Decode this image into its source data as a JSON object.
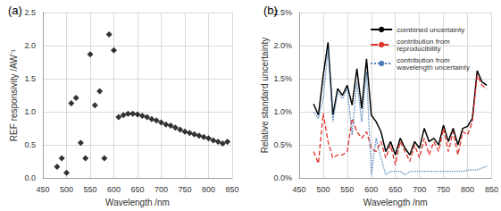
{
  "chart_data": [
    {
      "type": "scatter",
      "title": "(a)",
      "x_label": "Wavelength /nm",
      "y_label": "REF responsivity /AW⁻¹",
      "x": [
        480,
        490,
        500,
        510,
        520,
        530,
        540,
        550,
        560,
        570,
        580,
        590,
        600,
        610,
        620,
        630,
        640,
        650,
        660,
        670,
        680,
        690,
        700,
        710,
        720,
        730,
        740,
        750,
        760,
        770,
        780,
        790,
        800,
        810,
        820,
        830,
        840
      ],
      "values": [
        0.17,
        0.3,
        0.08,
        1.13,
        1.21,
        0.53,
        0.3,
        1.87,
        1.1,
        1.31,
        0.3,
        2.17,
        1.93,
        0.92,
        0.95,
        0.97,
        0.97,
        0.96,
        0.94,
        0.92,
        0.89,
        0.87,
        0.84,
        0.81,
        0.79,
        0.76,
        0.73,
        0.7,
        0.68,
        0.66,
        0.64,
        0.62,
        0.6,
        0.57,
        0.55,
        0.52,
        0.55
      ],
      "color": "#000000",
      "marker": "diamond",
      "xlim": [
        450,
        850
      ],
      "xticks": [
        450,
        500,
        550,
        600,
        650,
        700,
        750,
        800,
        850
      ],
      "ylim": [
        0,
        2.5
      ],
      "yticks": [
        {
          "value": 0,
          "label": "0.0"
        },
        0.5,
        {
          "value": 1,
          "label": "1.0"
        },
        1.5,
        {
          "value": 2,
          "label": "2.0"
        },
        2.5
      ],
      "grid": true
    },
    {
      "type": "line",
      "title": "(b)",
      "x_label": "Wavelength /nm",
      "y_label": "Relative standard uncertainty",
      "x": [
        480,
        490,
        500,
        510,
        520,
        530,
        540,
        550,
        560,
        570,
        580,
        590,
        600,
        610,
        620,
        630,
        640,
        650,
        660,
        670,
        680,
        690,
        700,
        710,
        720,
        730,
        740,
        750,
        760,
        770,
        780,
        790,
        800,
        810,
        820,
        830,
        840
      ],
      "series": [
        {
          "name": "combined uncertainty",
          "color": "#000000",
          "line_style": "solid",
          "values": [
            1.12,
            0.95,
            1.55,
            2.05,
            0.95,
            1.35,
            1.25,
            1.4,
            1.1,
            1.65,
            1.05,
            1.8,
            0.95,
            0.85,
            0.7,
            0.4,
            0.55,
            0.35,
            0.6,
            0.45,
            0.35,
            0.55,
            0.45,
            0.75,
            0.55,
            0.6,
            0.5,
            0.8,
            0.55,
            0.75,
            0.5,
            0.75,
            0.78,
            0.9,
            1.62,
            1.45,
            1.4
          ]
        },
        {
          "name": "contribution from\nreproducibility",
          "color": "#e0312a",
          "line_style": "dashed",
          "values": [
            0.4,
            0.22,
            0.98,
            0.55,
            0.3,
            0.35,
            0.35,
            0.4,
            0.9,
            0.7,
            0.6,
            0.7,
            0.45,
            0.4,
            0.55,
            0.3,
            0.5,
            0.2,
            0.55,
            0.4,
            0.25,
            0.5,
            0.3,
            0.6,
            0.35,
            0.55,
            0.4,
            0.75,
            0.4,
            0.7,
            0.35,
            0.7,
            0.65,
            0.85,
            1.55,
            1.4,
            1.35
          ]
        },
        {
          "name": "contribution from\nwavelength uncertainty",
          "color": "#4a7ebb",
          "line_style": "dotted",
          "values": [
            1.0,
            0.9,
            1.2,
            1.95,
            0.85,
            1.3,
            1.2,
            1.35,
            0.65,
            1.45,
            0.85,
            1.6,
            0.05,
            0.6,
            0.3,
            0.05,
            0.1,
            0.1,
            0.1,
            0.05,
            0.1,
            0.1,
            0.1,
            0.1,
            0.1,
            0.1,
            0.1,
            0.1,
            0.1,
            0.1,
            0.1,
            0.1,
            0.12,
            0.12,
            0.12,
            0.15,
            0.18
          ]
        }
      ],
      "xlim": [
        450,
        850
      ],
      "xticks": [
        450,
        500,
        550,
        600,
        650,
        700,
        750,
        800,
        850
      ],
      "ylim": [
        0,
        2.5
      ],
      "yticks": [
        {
          "value": 0,
          "label": "0.0%"
        },
        {
          "value": 0.5,
          "label": "0.5%"
        },
        {
          "value": 1,
          "label": "1.0%"
        },
        {
          "value": 1.5,
          "label": "1.5%"
        },
        {
          "value": 2,
          "label": "2.0%"
        },
        {
          "value": 2.5,
          "label": "2.5%"
        }
      ],
      "grid": true,
      "legend": "top-right"
    }
  ]
}
